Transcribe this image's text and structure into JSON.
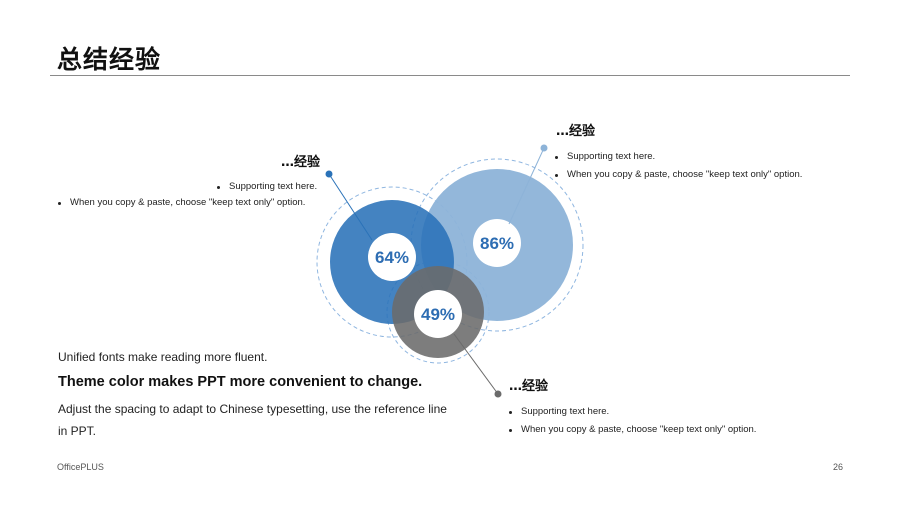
{
  "title": "总结经验",
  "circles": [
    {
      "label": "64%",
      "value": 64,
      "color": "#2a72b8"
    },
    {
      "label": "86%",
      "value": 86,
      "color": "#8db3d8"
    },
    {
      "label": "49%",
      "value": 49,
      "color": "#6b6b6b"
    }
  ],
  "blocks": {
    "left": {
      "title": "…经验",
      "bullets": [
        "Supporting text here.",
        "When you copy & paste, choose \"keep text only\" option."
      ]
    },
    "right_top": {
      "title": "…经验",
      "bullets": [
        "Supporting text here.",
        "When you copy & paste, choose \"keep text only\" option."
      ]
    },
    "right_bottom": {
      "title": "…经验",
      "bullets": [
        "Supporting text here.",
        "When you copy & paste, choose \"keep text only\" option."
      ]
    }
  },
  "notes": {
    "line1": "Unified fonts make reading more fluent.",
    "line2": "Theme color makes PPT more convenient to change.",
    "line3": "Adjust the spacing to adapt to Chinese typesetting, use the reference line in PPT."
  },
  "footer": {
    "brand": "OfficePLUS",
    "page": "26"
  }
}
